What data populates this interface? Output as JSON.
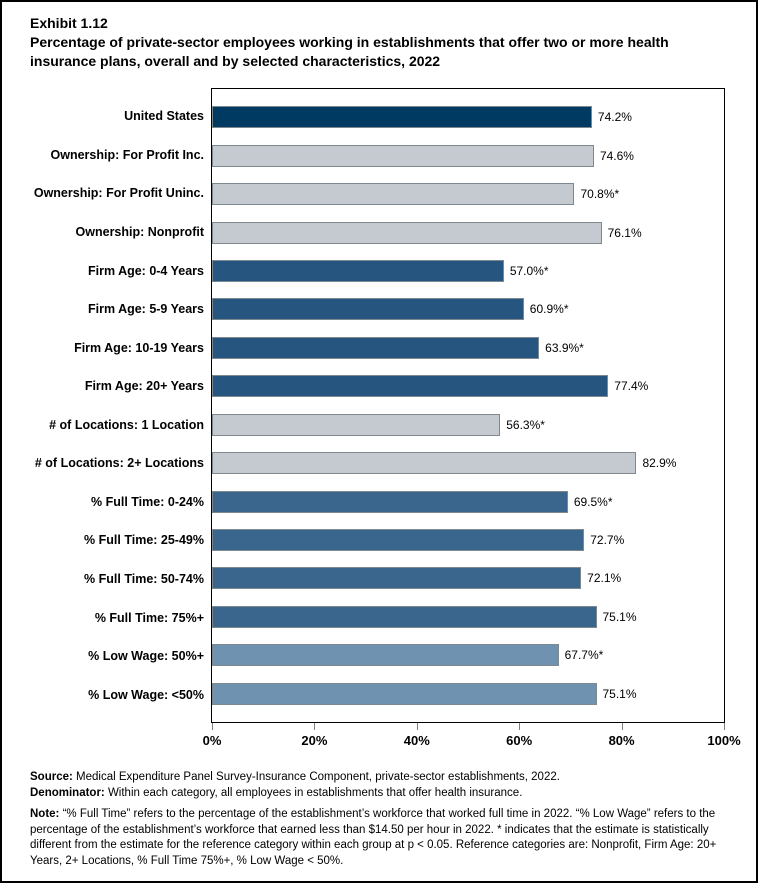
{
  "header": {
    "exhibit": "Exhibit 1.12",
    "title": "Percentage of private-sector employees working in establishments that offer two or more health insurance plans, overall and by selected characteristics, 2022"
  },
  "chart_data": {
    "type": "bar",
    "orientation": "horizontal",
    "title": "Percentage of private-sector employees working in establishments that offer two or more health insurance plans, overall and by selected characteristics, 2022",
    "xlabel": "",
    "ylabel": "",
    "xlim": [
      0,
      100
    ],
    "grid": false,
    "x_tick_values": [
      0,
      20,
      40,
      60,
      80,
      100
    ],
    "x_tick_labels": [
      "0%",
      "20%",
      "40%",
      "60%",
      "80%",
      "100%"
    ],
    "rows": [
      {
        "label": "United States",
        "value": 74.2,
        "display": "74.2%",
        "group": "united_states"
      },
      {
        "label": "Ownership: For Profit Inc.",
        "value": 74.6,
        "display": "74.6%",
        "group": "ownership"
      },
      {
        "label": "Ownership: For Profit Uninc.",
        "value": 70.8,
        "display": "70.8%*",
        "group": "ownership"
      },
      {
        "label": "Ownership: Nonprofit",
        "value": 76.1,
        "display": "76.1%",
        "group": "ownership"
      },
      {
        "label": "Firm Age: 0-4 Years",
        "value": 57.0,
        "display": "57.0%*",
        "group": "firm_age"
      },
      {
        "label": "Firm Age: 5-9 Years",
        "value": 60.9,
        "display": "60.9%*",
        "group": "firm_age"
      },
      {
        "label": "Firm Age: 10-19 Years",
        "value": 63.9,
        "display": "63.9%*",
        "group": "firm_age"
      },
      {
        "label": "Firm Age: 20+ Years",
        "value": 77.4,
        "display": "77.4%",
        "group": "firm_age"
      },
      {
        "label": "# of Locations: 1 Location",
        "value": 56.3,
        "display": "56.3%*",
        "group": "locations"
      },
      {
        "label": "# of Locations: 2+ Locations",
        "value": 82.9,
        "display": "82.9%",
        "group": "locations"
      },
      {
        "label": "% Full Time: 0-24%",
        "value": 69.5,
        "display": "69.5%*",
        "group": "full_time"
      },
      {
        "label": "% Full Time: 25-49%",
        "value": 72.7,
        "display": "72.7%",
        "group": "full_time"
      },
      {
        "label": "% Full Time: 50-74%",
        "value": 72.1,
        "display": "72.1%",
        "group": "full_time"
      },
      {
        "label": "% Full Time: 75%+",
        "value": 75.1,
        "display": "75.1%",
        "group": "full_time"
      },
      {
        "label": "% Low Wage: 50%+",
        "value": 67.7,
        "display": "67.7%*",
        "group": "low_wage"
      },
      {
        "label": "% Low Wage: <50%",
        "value": 75.1,
        "display": "75.1%",
        "group": "low_wage"
      }
    ],
    "group_colors": {
      "united_states": "#003A63",
      "ownership": "#C4CAD0",
      "firm_age": "#26567F",
      "locations": "#C4CAD0",
      "full_time": "#3A668E",
      "low_wage": "#6E92AF"
    },
    "bar_border_color": "#7E888F"
  },
  "footer": {
    "source_label": "Source:",
    "source_text": "Medical Expenditure Panel Survey-Insurance Component, private-sector establishments, 2022.",
    "denominator_label": "Denominator:",
    "denominator_text": "Within each category, all employees in establishments that offer health insurance.",
    "note_label": "Note:",
    "note_text": "“% Full Time” refers to the percentage of the establishment’s workforce that worked full time in 2022. “% Low Wage” refers to the percentage of the establishment’s workforce that earned less than $14.50 per hour in 2022. * indicates that the estimate is statistically different from the estimate for the reference category within each group at p < 0.05.  Reference categories are: Nonprofit, Firm Age: 20+ Years, 2+ Locations, % Full Time 75%+, % Low Wage < 50%."
  }
}
